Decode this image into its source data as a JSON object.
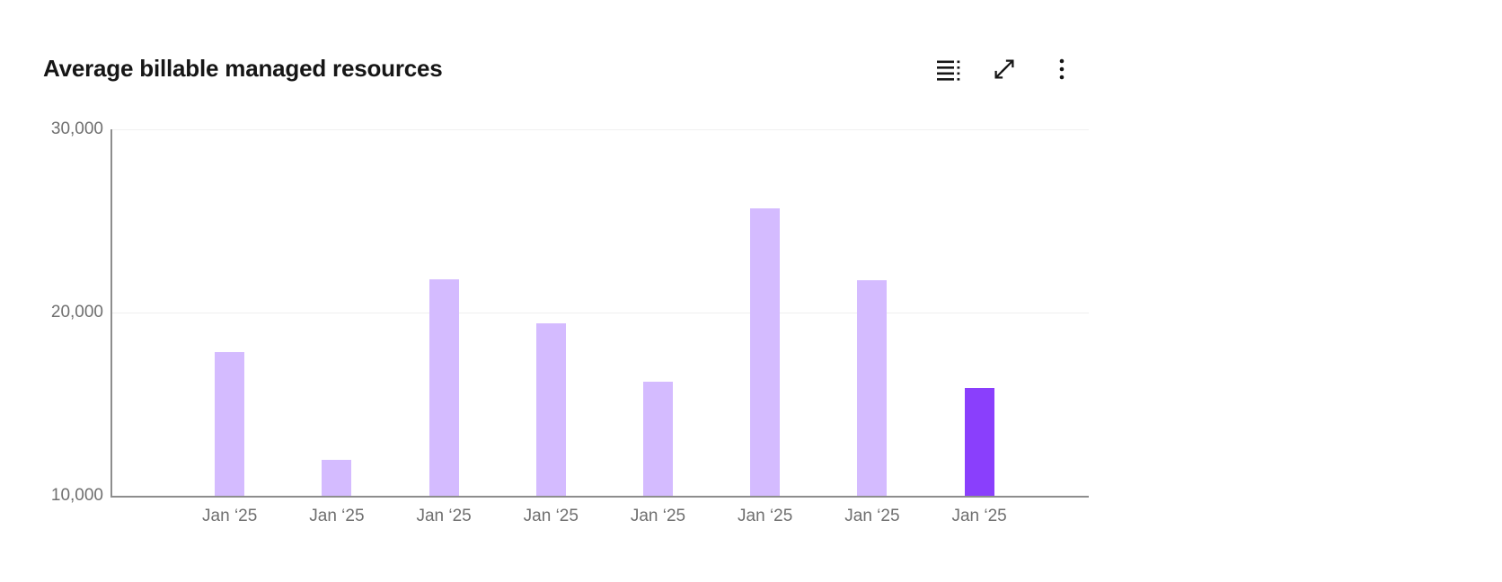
{
  "header": {
    "title": "Average billable managed resources",
    "toolbar": {
      "icons": [
        "show-data-table-icon",
        "expand-icon",
        "overflow-menu-icon"
      ]
    }
  },
  "chart_data": {
    "type": "bar",
    "title": "Average billable managed resources",
    "categories": [
      "Jan ‘25",
      "Jan ‘25",
      "Jan ‘25",
      "Jan ‘25",
      "Jan ‘25",
      "Jan ‘25",
      "Jan ‘25",
      "Jan ‘25"
    ],
    "values": [
      17850,
      11950,
      21800,
      19400,
      16250,
      25700,
      21750,
      15900
    ],
    "highlighted_index": 7,
    "xlabel": "",
    "ylabel": "",
    "ylim": [
      10000,
      30000
    ],
    "y_ticks": [
      {
        "value": 30000,
        "label": "30,000"
      },
      {
        "value": 20000,
        "label": "20,000"
      },
      {
        "value": 10000,
        "label": "10,000"
      }
    ],
    "grid": "horizontal-only",
    "legend": "none",
    "colors": {
      "bar": "#d4bbff",
      "highlight": "#8a3ffc",
      "axis": "#8d8d8d",
      "gridline": "#f0f0f0",
      "tick_label": "#6f6f6f",
      "icon": "#161616"
    }
  }
}
